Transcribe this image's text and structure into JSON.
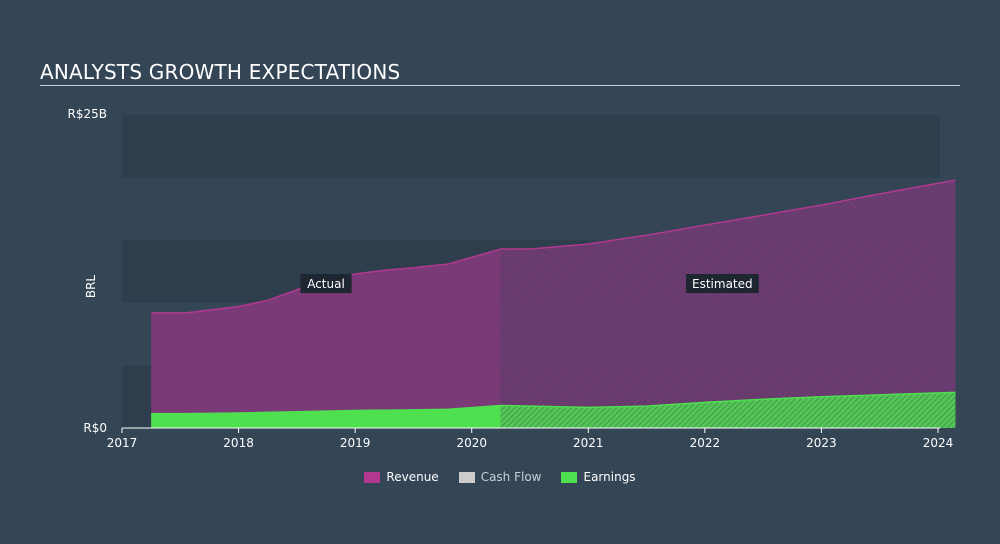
{
  "page": {
    "title": "ANALYSTS GROWTH EXPECTATIONS"
  },
  "chart_data": {
    "type": "area",
    "title": "ANALYSTS GROWTH EXPECTATIONS",
    "ylabel": "BRL",
    "xlabel": "",
    "ylim": [
      0,
      25
    ],
    "xlim": [
      2017,
      2024.15
    ],
    "y_ticks": [
      {
        "value": 0,
        "label": "R$0"
      },
      {
        "value": 25,
        "label": "R$25B"
      }
    ],
    "x_ticks": [
      {
        "value": 2017,
        "label": "2017"
      },
      {
        "value": 2018,
        "label": "2018"
      },
      {
        "value": 2019,
        "label": "2019"
      },
      {
        "value": 2020,
        "label": "2020"
      },
      {
        "value": 2021,
        "label": "2021"
      },
      {
        "value": 2022,
        "label": "2022"
      },
      {
        "value": 2023,
        "label": "2023"
      },
      {
        "value": 2024,
        "label": "2024"
      }
    ],
    "actual_end": 2020.25,
    "annotations": [
      {
        "label": "Actual",
        "x": 2018.75,
        "y": 11.5
      },
      {
        "label": "Estimated",
        "x": 2022.15,
        "y": 11.5
      }
    ],
    "series": [
      {
        "name": "Revenue",
        "color": "#b0398f",
        "fill": "#7a3a78",
        "x": [
          2017.25,
          2017.55,
          2018.0,
          2018.25,
          2018.55,
          2018.75,
          2019.0,
          2019.25,
          2019.5,
          2019.8,
          2020.25,
          2020.5,
          2021.0,
          2021.5,
          2022.0,
          2022.5,
          2023.0,
          2023.5,
          2024.15
        ],
        "values": [
          9.2,
          9.2,
          9.7,
          10.2,
          11.2,
          11.6,
          12.3,
          12.6,
          12.8,
          13.1,
          14.3,
          14.3,
          14.7,
          15.4,
          16.2,
          17.0,
          17.8,
          18.7,
          19.8
        ]
      },
      {
        "name": "Cash Flow",
        "color": "#cccccc",
        "fill": "#cccccc",
        "x": [],
        "values": []
      },
      {
        "name": "Earnings",
        "color": "#4fe04f",
        "fill": "#4fe04f",
        "x": [
          2017.25,
          2017.55,
          2018.0,
          2018.5,
          2019.0,
          2019.5,
          2019.8,
          2020.25,
          2020.5,
          2021.0,
          2021.5,
          2022.0,
          2022.5,
          2023.0,
          2023.5,
          2024.15
        ],
        "values": [
          1.15,
          1.15,
          1.2,
          1.3,
          1.4,
          1.45,
          1.5,
          1.8,
          1.75,
          1.65,
          1.75,
          2.05,
          2.3,
          2.5,
          2.65,
          2.85
        ]
      }
    ],
    "legend": [
      {
        "name": "Revenue",
        "color": "#b0398f"
      },
      {
        "name": "Cash Flow",
        "color": "#cccccc"
      },
      {
        "name": "Earnings",
        "color": "#4fe04f"
      }
    ]
  }
}
